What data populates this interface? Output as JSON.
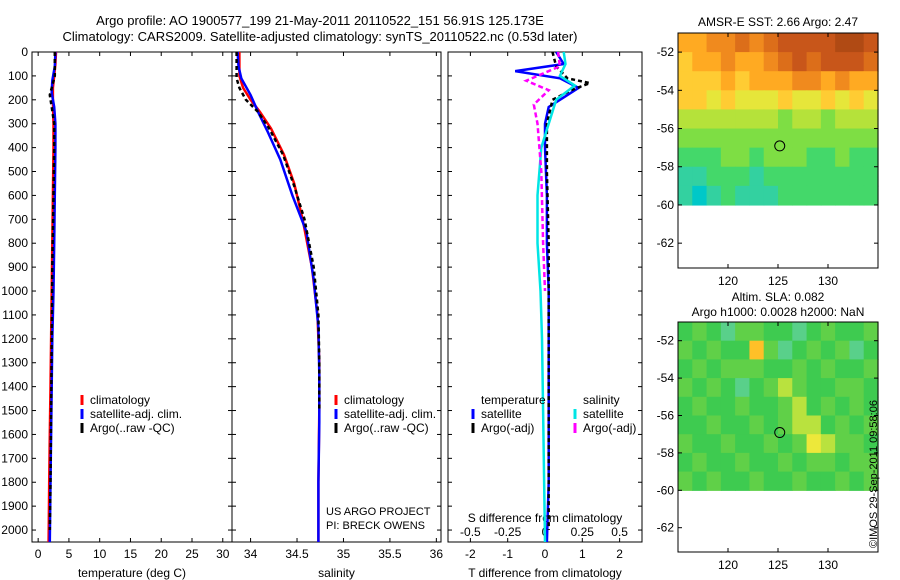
{
  "header": {
    "line1": "Argo profile: AO 1900577_199 21-May-2011 20110522_151 56.91S 125.173E",
    "line2": "Climatology: CARS2009. Satellite-adjusted climatology: synTS_20110522.nc (0.53d later)"
  },
  "credits": {
    "project": "US ARGO PROJECT",
    "pi": "PI: BRECK OWENS",
    "stamp": "©IMOS 29-Sep-2011 09:58:06"
  },
  "colors": {
    "climatology": "#ff0000",
    "satellite": "#0000ff",
    "argo": "#000000",
    "s_satellite": "#00e5e5",
    "s_argo": "#ff00ff"
  },
  "chart_data": [
    {
      "type": "line",
      "xlabel": "temperature (deg C)",
      "ylabel": "",
      "xlim": [
        -1,
        31.5
      ],
      "ylim": [
        2050,
        0
      ],
      "xticks": [
        0,
        5,
        10,
        15,
        20,
        25,
        30
      ],
      "yticks": [
        0,
        100,
        200,
        300,
        400,
        500,
        600,
        700,
        800,
        900,
        1000,
        1100,
        1200,
        1300,
        1400,
        1500,
        1600,
        1700,
        1800,
        1900,
        2000
      ],
      "legend": [
        "climatology",
        "satellite-adj. clim.",
        "Argo(..raw -QC)"
      ],
      "legend_placement": "lower-right",
      "series": [
        {
          "name": "climatology",
          "color": "#ff0000",
          "dash": "",
          "x": [
            2.9,
            2.8,
            2.6,
            2.4,
            2.4,
            2.5,
            2.5,
            2.4,
            2.3,
            2.2,
            2.1,
            2.0,
            1.9,
            1.8,
            1.7
          ],
          "y": [
            0,
            50,
            100,
            150,
            200,
            300,
            400,
            600,
            800,
            1000,
            1200,
            1400,
            1600,
            1800,
            2050
          ]
        },
        {
          "name": "satellite-adj. clim.",
          "color": "#0000ff",
          "dash": "",
          "x": [
            2.8,
            2.7,
            2.3,
            2.2,
            2.6,
            2.8,
            2.8,
            2.7,
            2.6,
            2.5,
            2.3,
            2.2,
            2.1,
            2.0,
            1.9
          ],
          "y": [
            0,
            60,
            120,
            170,
            230,
            300,
            400,
            600,
            800,
            1000,
            1200,
            1400,
            1600,
            1800,
            2050
          ]
        },
        {
          "name": "Argo(..raw -QC)",
          "color": "#000000",
          "dash": "4,3",
          "x": [
            2.7,
            2.7,
            2.2,
            1.9,
            2.2,
            2.6,
            2.6,
            2.5,
            2.3,
            2.2,
            2.1,
            2.0,
            1.9
          ],
          "y": [
            0,
            100,
            150,
            180,
            230,
            300,
            400,
            600,
            900,
            1200,
            1500,
            1800,
            2000
          ]
        }
      ]
    },
    {
      "type": "line",
      "xlabel": "salinity",
      "ylabel": "",
      "xlim": [
        33.8,
        36.05
      ],
      "ylim": [
        2050,
        0
      ],
      "xticks": [
        34,
        34.5,
        35,
        35.5,
        36
      ],
      "yticks": [],
      "legend": [
        "climatology",
        "satellite-adj. clim.",
        "Argo(..raw -QC)"
      ],
      "legend_placement": "lower-right",
      "series": [
        {
          "name": "climatology",
          "color": "#ff0000",
          "dash": "",
          "x": [
            33.88,
            33.88,
            33.92,
            34.0,
            34.1,
            34.22,
            34.36,
            34.47,
            34.56,
            34.66,
            34.72,
            34.74,
            34.74,
            34.73,
            34.73
          ],
          "y": [
            0,
            100,
            150,
            200,
            250,
            320,
            430,
            550,
            700,
            900,
            1100,
            1300,
            1500,
            1800,
            2050
          ]
        },
        {
          "name": "satellite-adj. clim.",
          "color": "#0000ff",
          "dash": "",
          "x": [
            33.86,
            33.87,
            33.9,
            34.0,
            34.08,
            34.18,
            34.32,
            34.45,
            34.6,
            34.68,
            34.73,
            34.74,
            34.74,
            34.73,
            34.73
          ],
          "y": [
            0,
            60,
            110,
            180,
            250,
            330,
            450,
            600,
            750,
            950,
            1150,
            1350,
            1550,
            1800,
            2050
          ]
        },
        {
          "name": "Argo(..raw -QC)",
          "color": "#000000",
          "dash": "4,3",
          "x": [
            33.85,
            33.85,
            33.88,
            33.95,
            34.08,
            34.2,
            34.35,
            34.47,
            34.58,
            34.68,
            34.73,
            34.74,
            34.74
          ],
          "y": [
            0,
            110,
            150,
            200,
            250,
            320,
            430,
            560,
            700,
            900,
            1100,
            1300,
            1500
          ]
        }
      ]
    },
    {
      "type": "line",
      "xlabel": "T difference from climatology",
      "ylabel": "",
      "xlim": [
        -2.6,
        2.6
      ],
      "ylim": [
        2050,
        0
      ],
      "xticks": [
        -2,
        -1,
        0,
        1,
        2
      ],
      "yticks": [],
      "secondary_xlabel": "S difference from climatology",
      "secondary_xticks": [
        "-0.5",
        "-0.25",
        "0",
        "0.25",
        "0.5"
      ],
      "legend_headers": [
        "temperature",
        "salinity"
      ],
      "legend": [
        "satellite",
        "Argo(-adj)",
        "satellite",
        "Argo(-adj)"
      ],
      "legend_placement": "lower-center",
      "series": [
        {
          "name": "satellite",
          "group": "temperature",
          "color": "#0000ff",
          "dash": "",
          "x": [
            0.3,
            0.5,
            -0.8,
            0.4,
            0.9,
            0.5,
            0.1,
            0.0,
            0.0,
            0.05,
            0.05,
            0.1,
            0.1,
            0.1,
            0.05
          ],
          "y": [
            0,
            50,
            80,
            110,
            150,
            190,
            230,
            300,
            400,
            600,
            800,
            1000,
            1400,
            1800,
            2050
          ]
        },
        {
          "name": "Argo(-adj)",
          "group": "temperature",
          "color": "#000000",
          "dash": "4,3",
          "x": [
            0.2,
            0.3,
            0.6,
            1.2,
            0.7,
            0.2,
            0.05,
            0.05,
            0.1,
            0.1,
            0.1,
            0.1,
            0.1
          ],
          "y": [
            0,
            60,
            110,
            130,
            160,
            200,
            300,
            500,
            800,
            1100,
            1400,
            1700,
            2000
          ]
        },
        {
          "name": "satellite",
          "group": "salinity",
          "color": "#00e5e5",
          "dash": "",
          "x": [
            0.5,
            0.55,
            0.4,
            0.8,
            0.3,
            0.1,
            -0.1,
            -0.2,
            -0.2,
            -0.12,
            -0.08,
            -0.05,
            0.0
          ],
          "y": [
            0,
            50,
            100,
            140,
            200,
            300,
            400,
            600,
            800,
            1000,
            1200,
            1500,
            2050
          ]
        },
        {
          "name": "Argo(-adj)",
          "group": "salinity",
          "color": "#ff00ff",
          "dash": "5,3",
          "x": [
            0.35,
            0.4,
            -0.5,
            0.1,
            -0.3,
            -0.2,
            -0.1,
            -0.05,
            0.0
          ],
          "y": [
            0,
            60,
            120,
            160,
            220,
            300,
            500,
            800,
            1000
          ]
        }
      ]
    },
    {
      "type": "heatmap",
      "title": "AMSR-E SST: 2.66 Argo: 2.47",
      "xlim": [
        115,
        135
      ],
      "ylim": [
        -63.3,
        -51
      ],
      "xticks": [
        120,
        125,
        130
      ],
      "yticks": [
        -52,
        -54,
        -56,
        -58,
        -60,
        -62
      ],
      "data_lat_range": [
        -60,
        -51
      ],
      "rows_north_to_south": [
        [
          8,
          8,
          9,
          9,
          10,
          9,
          10,
          11,
          11,
          11,
          11,
          12,
          12,
          11
        ],
        [
          7,
          8,
          8,
          9,
          8,
          8,
          9,
          10,
          11,
          10,
          11,
          11,
          11,
          10
        ],
        [
          7,
          7,
          7,
          8,
          7,
          8,
          8,
          8,
          9,
          9,
          8,
          9,
          8,
          8
        ],
        [
          7,
          7,
          6,
          7,
          6,
          6,
          6,
          7,
          6,
          6,
          7,
          6,
          7,
          6
        ],
        [
          5,
          5,
          5,
          5,
          5,
          5,
          5,
          4,
          5,
          5,
          4,
          5,
          5,
          5
        ],
        [
          4,
          4,
          4,
          4,
          4,
          4,
          4,
          4,
          4,
          4,
          4,
          4,
          4,
          4
        ],
        [
          3,
          3,
          3,
          4,
          4,
          3,
          4,
          4,
          4,
          3,
          3,
          4,
          3,
          3
        ],
        [
          2,
          2,
          3,
          3,
          3,
          2,
          3,
          3,
          3,
          3,
          3,
          3,
          3,
          3
        ],
        [
          2,
          1,
          2,
          3,
          2,
          2,
          2,
          3,
          3,
          3,
          3,
          3,
          3,
          3
        ]
      ],
      "marker": {
        "lon": 125.173,
        "lat": -56.91
      }
    },
    {
      "type": "heatmap",
      "title": "Altim. SLA: 0.082",
      "subtitle": "Argo h1000: 0.0028 h2000: NaN",
      "xlim": [
        115,
        135
      ],
      "ylim": [
        -63.3,
        -51
      ],
      "xticks": [
        120,
        125,
        130
      ],
      "yticks": [
        -52,
        -54,
        -56,
        -58,
        -60,
        -62
      ],
      "data_lat_range": [
        -60,
        -51
      ],
      "rows_north_to_south": [
        [
          4,
          5,
          4,
          3,
          5,
          5,
          4,
          4,
          3,
          4,
          5,
          4,
          4,
          5
        ],
        [
          5,
          4,
          5,
          4,
          4,
          8,
          5,
          3,
          4,
          5,
          4,
          5,
          3,
          4
        ],
        [
          4,
          5,
          4,
          5,
          5,
          5,
          4,
          4,
          5,
          4,
          5,
          4,
          4,
          5
        ],
        [
          5,
          4,
          5,
          4,
          3,
          4,
          5,
          6,
          5,
          4,
          4,
          5,
          5,
          4
        ],
        [
          4,
          5,
          4,
          4,
          5,
          4,
          4,
          5,
          6,
          4,
          5,
          4,
          5,
          4
        ],
        [
          4,
          4,
          5,
          4,
          4,
          5,
          4,
          5,
          6,
          6,
          4,
          5,
          4,
          5
        ],
        [
          5,
          4,
          4,
          5,
          4,
          4,
          5,
          4,
          5,
          7,
          6,
          5,
          5,
          4
        ],
        [
          4,
          5,
          4,
          4,
          5,
          4,
          4,
          5,
          4,
          5,
          5,
          4,
          5,
          5
        ],
        [
          5,
          4,
          5,
          4,
          4,
          5,
          4,
          4,
          5,
          4,
          4,
          5,
          4,
          5
        ]
      ],
      "marker": {
        "lon": 125.173,
        "lat": -56.91
      }
    }
  ]
}
